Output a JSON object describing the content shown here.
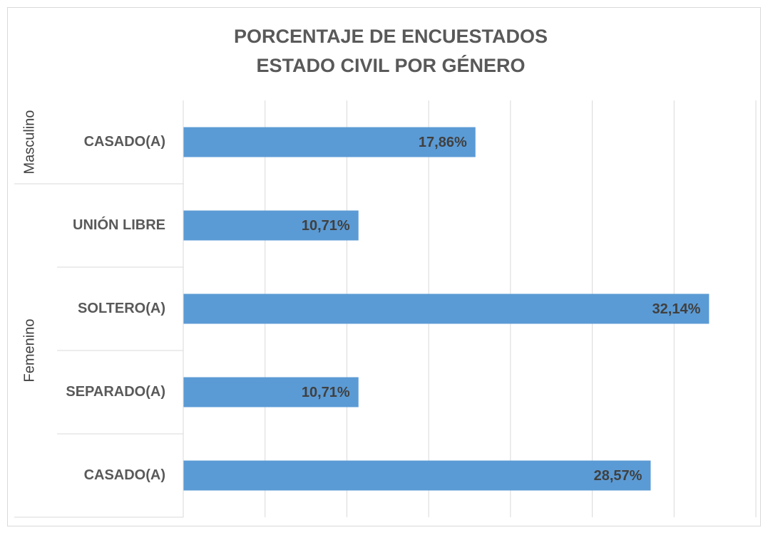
{
  "chart_data": {
    "type": "bar",
    "orientation": "horizontal",
    "title": [
      "PORCENTAJE DE ENCUESTADOS",
      "ESTADO CIVIL POR GÉNERO"
    ],
    "groups": [
      {
        "name": "Masculino",
        "categories": [
          "CASADO(A)"
        ],
        "values": [
          17.86
        ],
        "value_labels": [
          "17,86%"
        ]
      },
      {
        "name": "Femenino",
        "categories": [
          "UNIÓN LIBRE",
          "SOLTERO(A)",
          "SEPARADO(A)",
          "CASADO(A)"
        ],
        "values": [
          10.71,
          32.14,
          10.71,
          28.57
        ],
        "value_labels": [
          "10,71%",
          "32,14%",
          "10,71%",
          "28,57%"
        ]
      }
    ],
    "color": "#5b9bd5",
    "xlim": [
      0,
      35
    ],
    "xticks": [
      0,
      5,
      10,
      15,
      20,
      25,
      30,
      35
    ],
    "grid": true
  }
}
